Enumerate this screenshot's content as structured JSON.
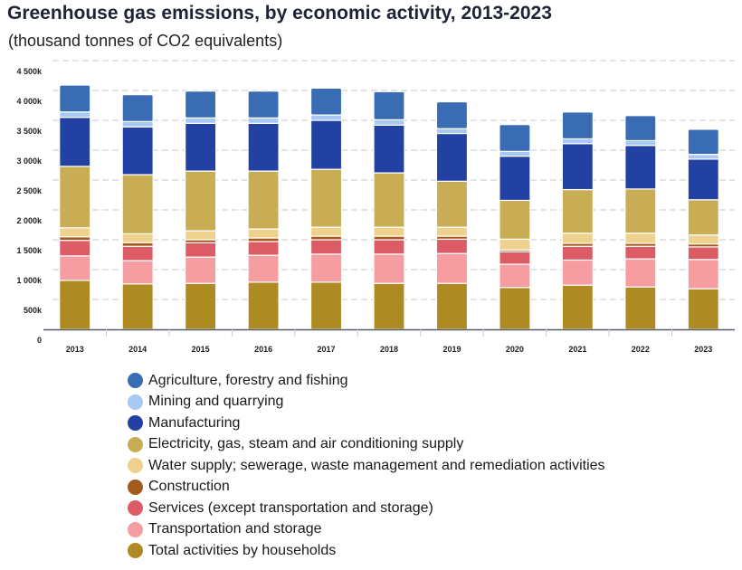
{
  "chart_data": {
    "type": "bar",
    "stacked": true,
    "title": "Greenhouse gas emissions, by economic activity, 2013-2023",
    "subtitle": "(thousand tonnes of CO2 equivalents)",
    "xlabel": "",
    "ylabel": "",
    "ylim": [
      0,
      4500
    ],
    "yticks": [
      0,
      500,
      1000,
      1500,
      2000,
      2500,
      3000,
      3500,
      4000,
      4500
    ],
    "ytick_labels": [
      "0",
      "500k",
      "1 000k",
      "1 500k",
      "2 000k",
      "2 500k",
      "3 000k",
      "3 500k",
      "4 000k",
      "4 500k"
    ],
    "grid": true,
    "legend_position": "bottom",
    "categories": [
      "2013",
      "2014",
      "2015",
      "2016",
      "2017",
      "2018",
      "2019",
      "2020",
      "2021",
      "2022",
      "2023"
    ],
    "series": [
      {
        "name": "Total activities by households",
        "color": "#ad8b22",
        "values": [
          820,
          760,
          770,
          790,
          790,
          770,
          770,
          700,
          740,
          710,
          680
        ]
      },
      {
        "name": "Transportation and storage",
        "color": "#f59da0",
        "values": [
          410,
          390,
          440,
          450,
          470,
          490,
          500,
          390,
          420,
          470,
          490
        ]
      },
      {
        "name": "Services (except transportation and storage)",
        "color": "#db5c64",
        "values": [
          260,
          240,
          240,
          230,
          240,
          240,
          240,
          210,
          230,
          210,
          210
        ]
      },
      {
        "name": "Construction",
        "color": "#a35a1c",
        "values": [
          60,
          60,
          50,
          60,
          60,
          60,
          50,
          30,
          50,
          50,
          50
        ]
      },
      {
        "name": "Water supply; sewerage, waste management and remediation activities",
        "color": "#efd18e",
        "values": [
          150,
          150,
          150,
          150,
          150,
          150,
          150,
          180,
          170,
          170,
          150
        ]
      },
      {
        "name": "Electricity, gas, steam and air conditioning supply",
        "color": "#c8ad55",
        "values": [
          1030,
          990,
          1000,
          970,
          970,
          910,
          770,
          650,
          730,
          740,
          590
        ]
      },
      {
        "name": "Manufacturing",
        "color": "#2341a3",
        "values": [
          820,
          800,
          800,
          800,
          820,
          800,
          800,
          740,
          770,
          730,
          680
        ]
      },
      {
        "name": "Mining and quarrying",
        "color": "#a8c8f5",
        "values": [
          90,
          90,
          90,
          90,
          90,
          90,
          80,
          80,
          80,
          80,
          80
        ]
      },
      {
        "name": "Agriculture, forestry and fishing",
        "color": "#3a6cb4",
        "values": [
          450,
          450,
          450,
          450,
          450,
          470,
          450,
          450,
          450,
          420,
          420
        ]
      }
    ]
  },
  "legend": {
    "items": [
      {
        "label": "Agriculture, forestry and fishing",
        "color": "#3a6cb4"
      },
      {
        "label": "Mining and quarrying",
        "color": "#a8c8f5"
      },
      {
        "label": "Manufacturing",
        "color": "#2341a3"
      },
      {
        "label": "Electricity, gas, steam and air conditioning supply",
        "color": "#c8ad55"
      },
      {
        "label": "Water supply; sewerage, waste management and remediation activities",
        "color": "#efd18e"
      },
      {
        "label": "Construction",
        "color": "#a35a1c"
      },
      {
        "label": "Services (except transportation and storage)",
        "color": "#db5c64"
      },
      {
        "label": "Transportation and storage",
        "color": "#f59da0"
      },
      {
        "label": "Total activities by households",
        "color": "#ad8b22"
      }
    ]
  }
}
